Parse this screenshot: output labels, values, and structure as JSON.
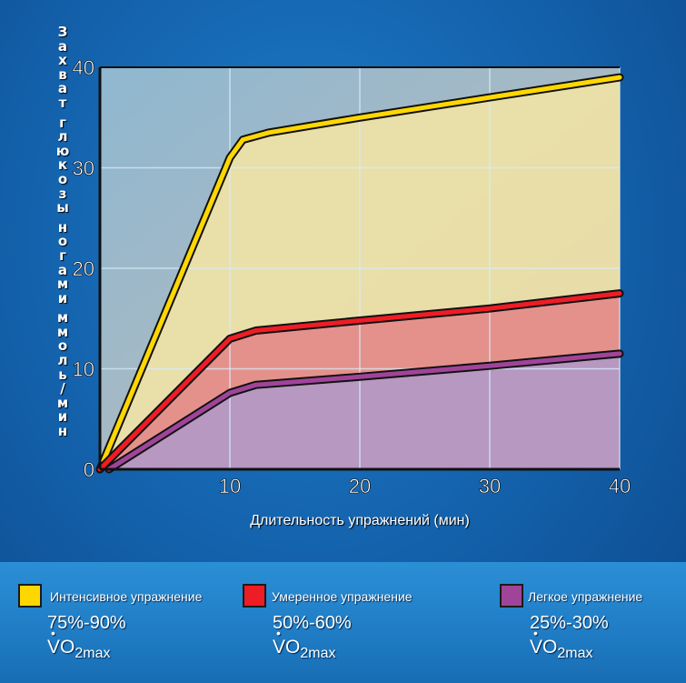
{
  "chart_data": {
    "type": "line",
    "xlabel": "Длительность упражнений (мин)",
    "ylabel": "Захват глюкозы ногами ммоль/мин",
    "x_ticks": [
      10,
      20,
      30,
      40
    ],
    "y_ticks": [
      0,
      10,
      20,
      30,
      40
    ],
    "xlim": [
      0,
      40
    ],
    "ylim": [
      0,
      40
    ],
    "grid": true,
    "legend_position": "bottom",
    "series": [
      {
        "name": "Интенсивное упражнение",
        "color": "#ffd700",
        "fill": "#efe2a6",
        "points": [
          [
            0,
            0
          ],
          [
            10,
            31
          ],
          [
            11,
            32.8
          ],
          [
            13,
            33.5
          ],
          [
            20,
            35
          ],
          [
            30,
            37
          ],
          [
            40,
            39
          ]
        ]
      },
      {
        "name": "Умеренное упражнение",
        "color": "#ee1c25",
        "fill": "#e38a8a",
        "points": [
          [
            0,
            0
          ],
          [
            10,
            13
          ],
          [
            12,
            13.8
          ],
          [
            20,
            14.8
          ],
          [
            30,
            16
          ],
          [
            40,
            17.5
          ]
        ]
      },
      {
        "name": "Легкое упражнение",
        "color": "#a0449a",
        "fill": "#b299c6",
        "points": [
          [
            0.7,
            0
          ],
          [
            10,
            7.6
          ],
          [
            12,
            8.4
          ],
          [
            20,
            9.2
          ],
          [
            30,
            10.3
          ],
          [
            40,
            11.5
          ]
        ]
      }
    ]
  },
  "legend": [
    {
      "label": "Интенсивное упражнение",
      "pct": "75%-90%",
      "vo": "VO",
      "vo_sub": "2max",
      "color": "#ffd700"
    },
    {
      "label": "Умеренное упражнение",
      "pct": "50%-60%",
      "vo": "VO",
      "vo_sub": "2max",
      "color": "#ee1c25"
    },
    {
      "label": "Легкое упражнение",
      "pct": "25%-30%",
      "vo": "VO",
      "vo_sub": "2max",
      "color": "#a0449a"
    }
  ]
}
